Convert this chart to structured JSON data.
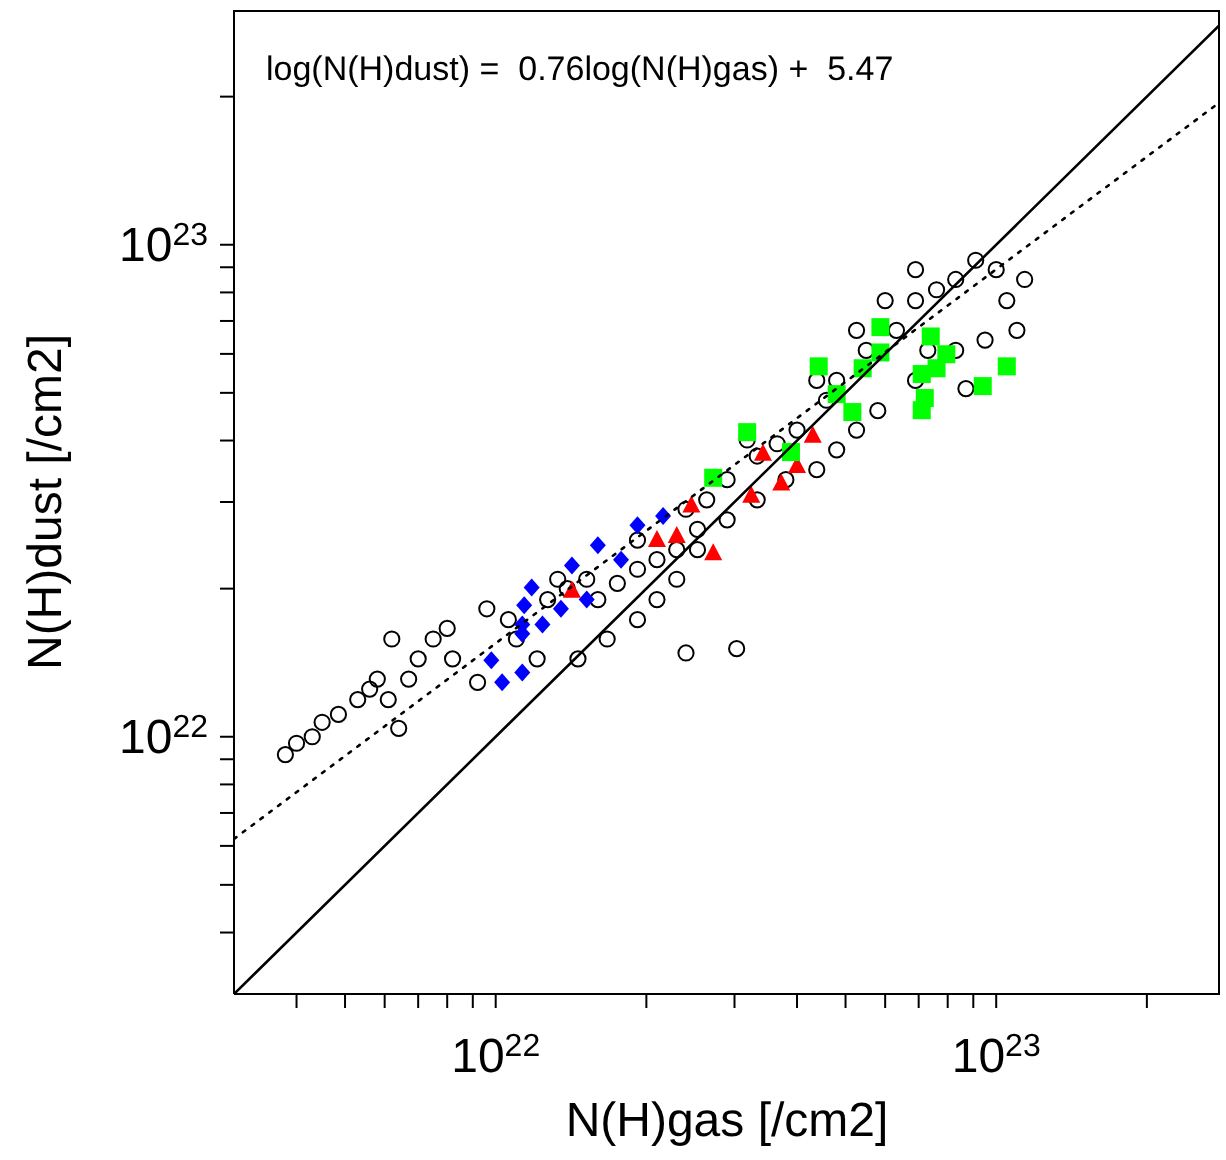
{
  "chart_data": {
    "type": "scatter",
    "xlabel": "N(H)gas [/cm2]",
    "ylabel": "N(H)dust [/cm2]",
    "log": "xy",
    "grid": false,
    "xlim": [
      3e+21,
      2.8e+23
    ],
    "ylim": [
      3e+21,
      3e+23
    ],
    "xticks": [
      {
        "value": 4e+21,
        "label": null
      },
      {
        "value": 5e+21,
        "label": null
      },
      {
        "value": 6e+21,
        "label": null
      },
      {
        "value": 7e+21,
        "label": null
      },
      {
        "value": 8e+21,
        "label": null
      },
      {
        "value": 9e+21,
        "label": null
      },
      {
        "value": 1e+22,
        "label": "10$^{22}$"
      },
      {
        "value": 2e+22,
        "label": null
      },
      {
        "value": 3e+22,
        "label": null
      },
      {
        "value": 4e+22,
        "label": null
      },
      {
        "value": 5e+22,
        "label": null
      },
      {
        "value": 6e+22,
        "label": null
      },
      {
        "value": 7e+22,
        "label": null
      },
      {
        "value": 8e+22,
        "label": null
      },
      {
        "value": 9e+22,
        "label": null
      },
      {
        "value": 1e+23,
        "label": "10$^{23}$"
      },
      {
        "value": 2e+23,
        "label": null
      }
    ],
    "yticks": [
      {
        "value": 4e+21,
        "label": null
      },
      {
        "value": 5e+21,
        "label": null
      },
      {
        "value": 6e+21,
        "label": null
      },
      {
        "value": 7e+21,
        "label": null
      },
      {
        "value": 8e+21,
        "label": null
      },
      {
        "value": 9e+21,
        "label": null
      },
      {
        "value": 1e+22,
        "label": "10$^{22}$"
      },
      {
        "value": 2e+22,
        "label": null
      },
      {
        "value": 3e+22,
        "label": null
      },
      {
        "value": 4e+22,
        "label": null
      },
      {
        "value": 5e+22,
        "label": null
      },
      {
        "value": 6e+22,
        "label": null
      },
      {
        "value": 7e+22,
        "label": null
      },
      {
        "value": 8e+22,
        "label": null
      },
      {
        "value": 9e+22,
        "label": null
      },
      {
        "value": 1e+23,
        "label": "10$^{23}$"
      },
      {
        "value": 2e+23,
        "label": null
      }
    ],
    "annotations": [
      "log(N(H)dust) =  0.76log(N(H)gas) +  5.47"
    ],
    "series": [
      {
        "marker": "circle",
        "color": "#000000",
        "x": [
          3.8e+21,
          4e+21,
          4.3e+21,
          4.5e+21,
          4.85e+21,
          5.3e+21,
          5.6e+21,
          5.8e+21,
          6.1e+21,
          6.4e+21,
          6.7e+21,
          7e+21,
          6.2e+21,
          7.5e+21,
          8.2e+21,
          9.2e+21,
          8e+21,
          9.6e+21,
          1.06e+22,
          1.1e+22,
          1.21e+22,
          1.27e+22,
          1.39e+22,
          1.52e+22,
          1.6e+22,
          1.75e+22,
          1.92e+22,
          2.1e+22,
          2.3e+22,
          2.53e+22,
          2.64e+22,
          2.9e+22,
          3.33e+22,
          3.65e+22,
          4e+22,
          4.58e+22,
          4.8e+22,
          5.5e+22,
          6.32e+22,
          6.9e+22,
          7.6e+22,
          8.3e+22,
          9.1e+22,
          1e+23,
          1.05e+23,
          1.1e+23,
          9.5e+22,
          8.3e+22,
          6.9e+22,
          5.8e+22,
          5.26e+22,
          4.8e+22,
          4.38e+22,
          3.8e+22,
          3.33e+22,
          2.9e+22,
          2.53e+22,
          2.3e+22,
          2.1e+22,
          1.92e+22,
          1.67e+22,
          1.46e+22,
          2.4e+22,
          3.03e+22,
          1.33e+22,
          1.92e+22,
          2.4e+22,
          3.18e+22,
          4.38e+22,
          5.26e+22,
          6e+22,
          6.9e+22,
          1.14e+23,
          8.7e+22,
          7.3e+22
        ],
        "values": [
          9.2e+21,
          9.7e+21,
          1e+22,
          1.07e+22,
          1.11e+22,
          1.19e+22,
          1.25e+22,
          1.31e+22,
          1.19e+22,
          1.04e+22,
          1.31e+22,
          1.44e+22,
          1.58e+22,
          1.58e+22,
          1.44e+22,
          1.29e+22,
          1.66e+22,
          1.82e+22,
          1.73e+22,
          1.58e+22,
          1.44e+22,
          1.9e+22,
          2e+22,
          2.09e+22,
          1.9e+22,
          2.05e+22,
          2.19e+22,
          2.29e+22,
          2.4e+22,
          2.64e+22,
          3.03e+22,
          3.33e+22,
          3.72e+22,
          3.94e+22,
          4.2e+22,
          4.83e+22,
          5.3e+22,
          6.1e+22,
          6.7e+22,
          7.7e+22,
          8.1e+22,
          8.5e+22,
          9.3e+22,
          8.9e+22,
          7.7e+22,
          6.7e+22,
          6.4e+22,
          6.1e+22,
          5.3e+22,
          4.6e+22,
          4.2e+22,
          3.83e+22,
          3.49e+22,
          3.33e+22,
          3.03e+22,
          2.76e+22,
          2.4e+22,
          2.09e+22,
          1.9e+22,
          1.73e+22,
          1.58e+22,
          1.44e+22,
          1.48e+22,
          1.51e+22,
          2.09e+22,
          2.51e+22,
          2.9e+22,
          4.01e+22,
          5.3e+22,
          6.7e+22,
          7.7e+22,
          8.9e+22,
          8.5e+22,
          5.1e+22,
          6.1e+22
        ]
      },
      {
        "marker": "diamond",
        "color": "#0000ff",
        "x": [
          1.18e+22,
          1.42e+22,
          1.14e+22,
          1.13e+22,
          1.24e+22,
          9.8e+21,
          1.03e+22,
          1.13e+22,
          1.52e+22,
          1.35e+22,
          1.92e+22,
          2.16e+22,
          1.6e+22,
          1.78e+22,
          1.13e+22
        ],
        "values": [
          2.01e+22,
          2.23e+22,
          1.85e+22,
          1.69e+22,
          1.69e+22,
          1.43e+22,
          1.29e+22,
          1.35e+22,
          1.9e+22,
          1.82e+22,
          2.69e+22,
          2.81e+22,
          2.45e+22,
          2.29e+22,
          1.62e+22
        ]
      },
      {
        "marker": "triangle",
        "color": "#ff0000",
        "x": [
          1.42e+22,
          2.1e+22,
          2.46e+22,
          2.3e+22,
          2.72e+22,
          3.24e+22,
          3.42e+22,
          4e+22,
          3.72e+22,
          4.3e+22
        ],
        "values": [
          1.98e+22,
          2.51e+22,
          2.95e+22,
          2.56e+22,
          2.36e+22,
          3.09e+22,
          3.76e+22,
          3.55e+22,
          3.27e+22,
          4.09e+22
        ]
      },
      {
        "marker": "square",
        "color": "#00ff00",
        "x": [
          3.18e+22,
          2.72e+22,
          3.89e+22,
          5.87e+22,
          5.87e+22,
          4.42e+22,
          5.41e+22,
          7.4e+22,
          7.95e+22,
          7.1e+22,
          7.6e+22,
          7.2e+22,
          7.1e+22,
          9.4e+22,
          1.05e+23,
          5.16e+22,
          4.8e+22
        ],
        "values": [
          4.16e+22,
          3.36e+22,
          3.79e+22,
          6.8e+22,
          6.04e+22,
          5.66e+22,
          5.61e+22,
          6.51e+22,
          5.99e+22,
          5.46e+22,
          5.61e+22,
          4.88e+22,
          4.61e+22,
          5.16e+22,
          5.66e+22,
          4.57e+22,
          4.97e+22
        ]
      },
      {
        "type": "line",
        "line_style": "solid",
        "color": "#000000",
        "x": [
          3e+21,
          2.8e+23
        ],
        "values": [
          3e+21,
          2.8e+23
        ]
      },
      {
        "type": "line",
        "line_style": "dotted",
        "color": "#000000",
        "x": [
          3e+21,
          2.8e+23
        ],
        "values": [
          6.2e+21,
          1.95e+23
        ]
      }
    ]
  }
}
